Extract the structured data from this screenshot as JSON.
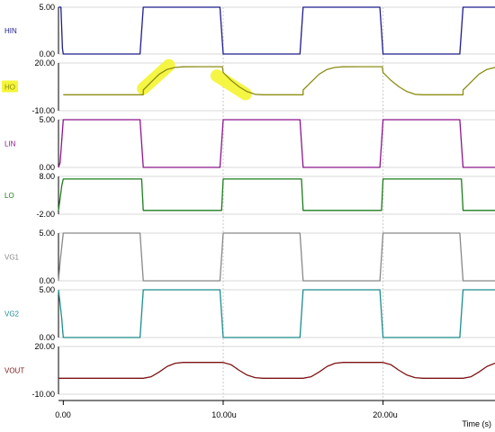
{
  "chart_data": {
    "type": "line",
    "xlabel": "Time (s)",
    "x_ticks": [
      {
        "value": 0,
        "label": "0.00"
      },
      {
        "value": 10,
        "label": "10.00u"
      },
      {
        "value": 20,
        "label": "20.00u"
      }
    ],
    "xlim": [
      -0.3,
      27.0
    ],
    "grid": "dashed vertical lines at x ticks",
    "panels": [
      {
        "name": "HIN",
        "color": "#1c1c8c",
        "ylim": [
          0,
          5
        ],
        "ytick_labels": [
          "5.00",
          "0.00"
        ],
        "points": [
          [
            -0.3,
            5
          ],
          [
            -0.15,
            5
          ],
          [
            -0.05,
            0.6
          ],
          [
            0,
            0
          ],
          [
            4.8,
            0
          ],
          [
            5.0,
            5
          ],
          [
            9.8,
            5
          ],
          [
            10.0,
            0
          ],
          [
            14.8,
            0
          ],
          [
            15.0,
            5
          ],
          [
            19.8,
            5
          ],
          [
            20.0,
            0
          ],
          [
            24.8,
            0
          ],
          [
            25.0,
            5
          ],
          [
            27,
            5
          ]
        ]
      },
      {
        "name": "HO",
        "color": "#8c8c14",
        "ylim": [
          -10,
          20
        ],
        "ytick_labels": [
          "20.00",
          "-10.00"
        ],
        "highlight_name": true,
        "points": [
          [
            0,
            0
          ],
          [
            5.0,
            0
          ],
          [
            5.0,
            3
          ],
          [
            5.5,
            8
          ],
          [
            6.0,
            13
          ],
          [
            6.5,
            16
          ],
          [
            7.0,
            17.2
          ],
          [
            7.5,
            17.6
          ],
          [
            8.5,
            17.7
          ],
          [
            9.95,
            17.7
          ],
          [
            10.0,
            14
          ],
          [
            10.5,
            9
          ],
          [
            11.0,
            5
          ],
          [
            11.5,
            2
          ],
          [
            12.0,
            0.3
          ],
          [
            12.5,
            0
          ],
          [
            15.0,
            0
          ],
          [
            15.0,
            3
          ],
          [
            15.5,
            8
          ],
          [
            16.0,
            13
          ],
          [
            16.5,
            16
          ],
          [
            17.0,
            17.2
          ],
          [
            17.5,
            17.6
          ],
          [
            18.5,
            17.7
          ],
          [
            19.95,
            17.7
          ],
          [
            20.0,
            14
          ],
          [
            20.5,
            9
          ],
          [
            21.0,
            5
          ],
          [
            21.5,
            2
          ],
          [
            22.0,
            0.3
          ],
          [
            22.5,
            0
          ],
          [
            25.0,
            0
          ],
          [
            25.0,
            3
          ],
          [
            25.5,
            8
          ],
          [
            26.0,
            13
          ],
          [
            26.5,
            16
          ],
          [
            27,
            17.2
          ]
        ],
        "markers": [
          {
            "x1": 5.0,
            "y1": 4,
            "x2": 6.6,
            "y2": 18.5
          },
          {
            "x1": 9.6,
            "y1": 12,
            "x2": 11.4,
            "y2": 0.5
          }
        ]
      },
      {
        "name": "LIN",
        "color": "#8c148c",
        "ylim": [
          0,
          5
        ],
        "ytick_labels": [
          "5.00",
          "0.00"
        ],
        "points": [
          [
            -0.3,
            0
          ],
          [
            -0.2,
            0.5
          ],
          [
            0,
            5
          ],
          [
            4.8,
            5
          ],
          [
            5.0,
            0
          ],
          [
            9.8,
            0
          ],
          [
            10.0,
            5
          ],
          [
            14.8,
            5
          ],
          [
            15.0,
            0
          ],
          [
            19.8,
            0
          ],
          [
            20.0,
            5
          ],
          [
            24.8,
            5
          ],
          [
            25.0,
            0
          ],
          [
            27,
            0
          ]
        ]
      },
      {
        "name": "LO",
        "color": "#1c7c1c",
        "ylim": [
          -2,
          8
        ],
        "ytick_labels": [
          "8.00",
          "-2.00"
        ],
        "points": [
          [
            -0.3,
            -1
          ],
          [
            -0.1,
            5.5
          ],
          [
            0,
            7.3
          ],
          [
            4.9,
            7.3
          ],
          [
            5.0,
            -1
          ],
          [
            9.9,
            -1
          ],
          [
            10.0,
            7.3
          ],
          [
            14.9,
            7.3
          ],
          [
            15.0,
            -1
          ],
          [
            19.9,
            -1
          ],
          [
            20.0,
            7.3
          ],
          [
            24.9,
            7.3
          ],
          [
            25.0,
            -1
          ],
          [
            27,
            -1
          ]
        ]
      },
      {
        "name": "VG1",
        "color": "#888888",
        "ylim": [
          0,
          5
        ],
        "ytick_labels": [
          "5.00",
          "0.00"
        ],
        "points": [
          [
            -0.3,
            0
          ],
          [
            -0.2,
            2
          ],
          [
            0,
            5
          ],
          [
            4.8,
            5
          ],
          [
            5.0,
            0
          ],
          [
            9.8,
            0
          ],
          [
            10.0,
            5
          ],
          [
            14.8,
            5
          ],
          [
            15.0,
            0
          ],
          [
            19.8,
            0
          ],
          [
            20.0,
            5
          ],
          [
            24.8,
            5
          ],
          [
            25.0,
            0
          ],
          [
            27,
            0
          ]
        ]
      },
      {
        "name": "VG2",
        "color": "#1c8c8c",
        "ylim": [
          0,
          5
        ],
        "ytick_labels": [
          "5.00",
          "0.00"
        ],
        "points": [
          [
            -0.3,
            5
          ],
          [
            -0.1,
            2
          ],
          [
            0,
            0
          ],
          [
            4.8,
            0
          ],
          [
            5.0,
            5
          ],
          [
            9.8,
            5
          ],
          [
            10.0,
            0
          ],
          [
            14.8,
            0
          ],
          [
            15.0,
            5
          ],
          [
            19.8,
            5
          ],
          [
            20.0,
            0
          ],
          [
            24.8,
            0
          ],
          [
            25.0,
            5
          ],
          [
            27,
            5
          ]
        ]
      },
      {
        "name": "VOUT",
        "color": "#7c1414",
        "ylim": [
          -10,
          20
        ],
        "ytick_labels": [
          "20.00",
          "-10.00"
        ],
        "points": [
          [
            -0.3,
            0
          ],
          [
            5.0,
            0
          ],
          [
            5.5,
            1
          ],
          [
            6.0,
            4
          ],
          [
            6.5,
            7.5
          ],
          [
            7.0,
            9.5
          ],
          [
            7.5,
            10
          ],
          [
            10.0,
            10
          ],
          [
            10.5,
            8.5
          ],
          [
            11.0,
            5
          ],
          [
            11.5,
            2
          ],
          [
            12.0,
            0.4
          ],
          [
            12.5,
            0
          ],
          [
            15.0,
            0
          ],
          [
            15.5,
            1
          ],
          [
            16.0,
            4
          ],
          [
            16.5,
            7.5
          ],
          [
            17.0,
            9.5
          ],
          [
            17.5,
            10
          ],
          [
            20.0,
            10
          ],
          [
            20.5,
            8.5
          ],
          [
            21.0,
            5
          ],
          [
            21.5,
            2
          ],
          [
            22.0,
            0.4
          ],
          [
            22.5,
            0
          ],
          [
            25.0,
            0
          ],
          [
            25.5,
            1
          ],
          [
            26.0,
            4
          ],
          [
            26.5,
            7.5
          ],
          [
            27,
            9.5
          ]
        ]
      }
    ]
  }
}
